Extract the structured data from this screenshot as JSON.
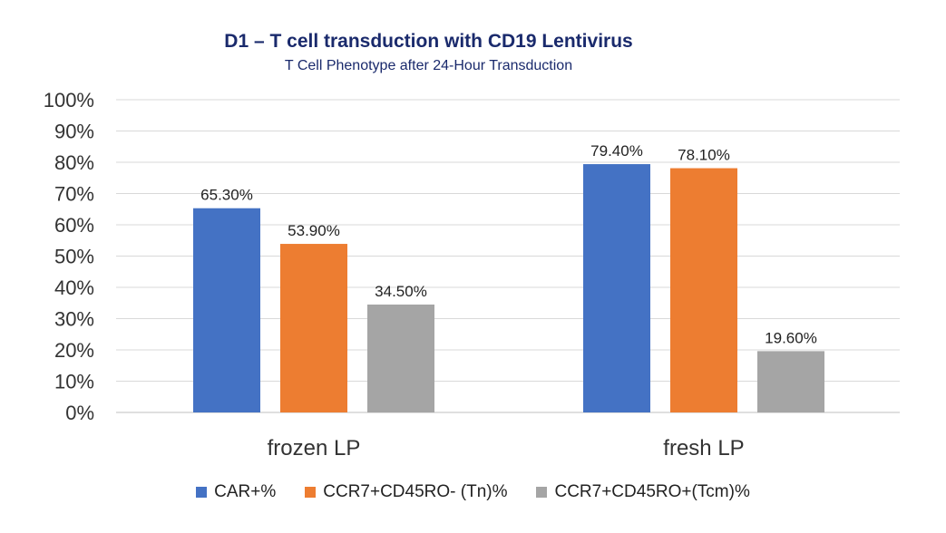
{
  "chart_data": {
    "type": "bar",
    "title": "D1 – T cell transduction with CD19 Lentivirus",
    "subtitle": "T Cell Phenotype after 24-Hour Transduction",
    "categories": [
      "frozen LP",
      "fresh LP"
    ],
    "series": [
      {
        "name": "CAR+%",
        "color": "#4472c4",
        "values": [
          65.3,
          79.4
        ],
        "labels": [
          "65.30%",
          "79.40%"
        ]
      },
      {
        "name": "CCR7+CD45RO- (Tn)%",
        "color": "#ed7d31",
        "values": [
          53.9,
          78.1
        ],
        "labels": [
          "53.90%",
          "78.10%"
        ]
      },
      {
        "name": "CCR7+CD45RO+(Tcm)%",
        "color": "#a5a5a5",
        "values": [
          34.5,
          19.6
        ],
        "labels": [
          "34.50%",
          "19.60%"
        ]
      }
    ],
    "yticks": [
      "0%",
      "10%",
      "20%",
      "30%",
      "40%",
      "50%",
      "60%",
      "70%",
      "80%",
      "90%",
      "100%"
    ],
    "ylim": [
      0,
      100
    ],
    "grid": true,
    "legend": "bottom"
  }
}
